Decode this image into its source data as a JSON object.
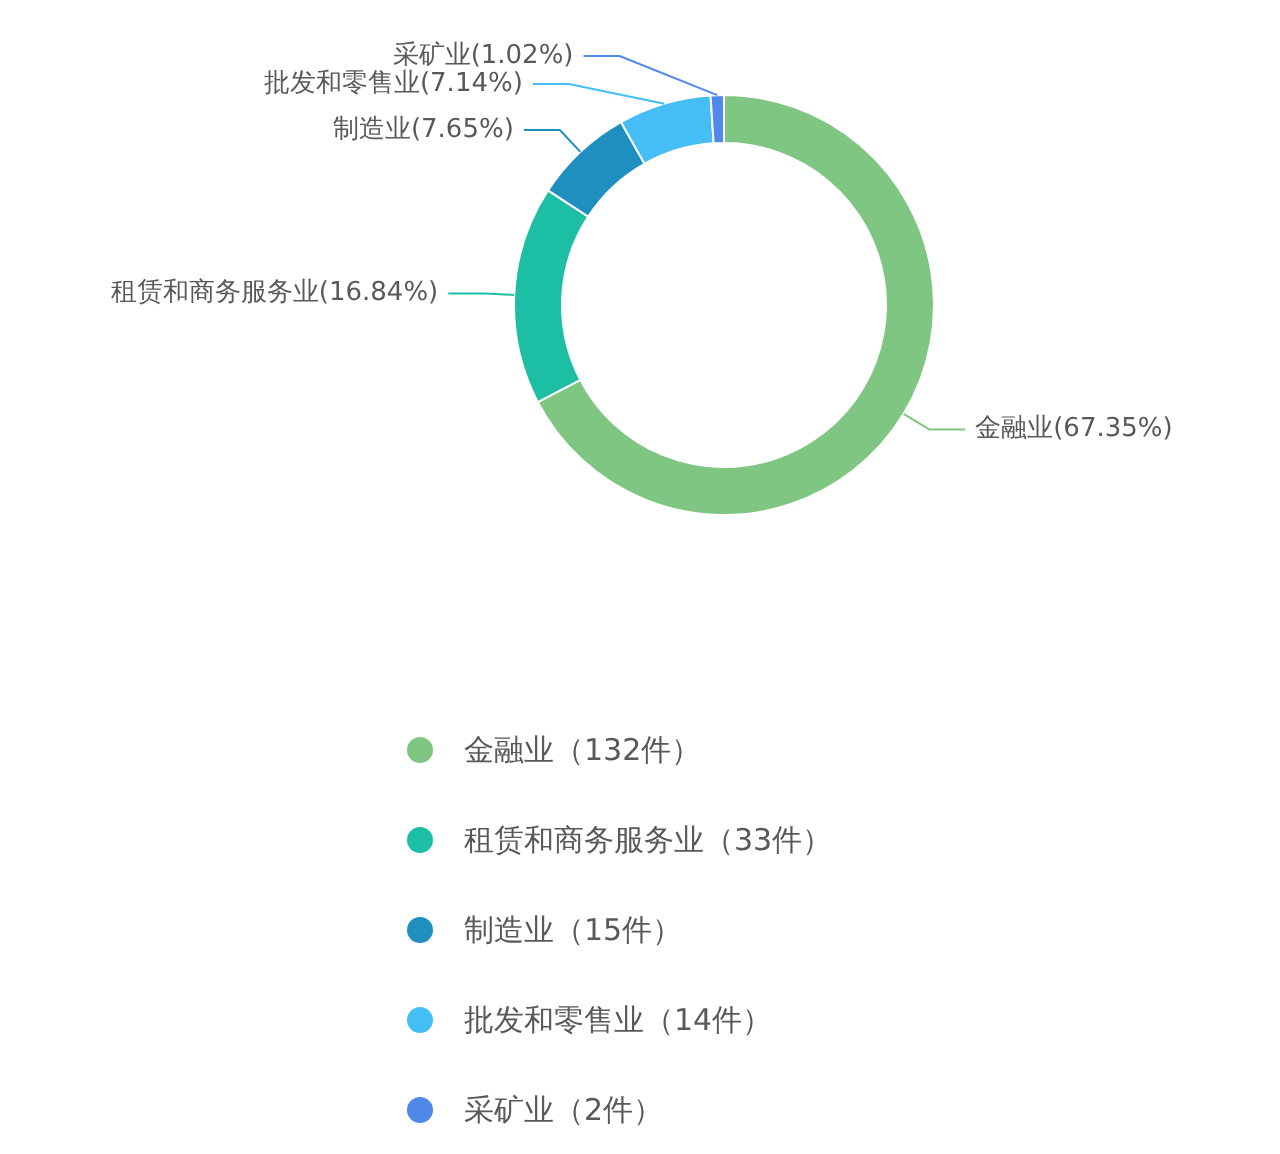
{
  "chart_data": {
    "type": "donut",
    "categories": [
      "金融业（132件）",
      "租赁和商务服务业（33件）",
      "制造业（15件）",
      "批发和零售业（14件）",
      "采矿业（2件）"
    ],
    "values": [
      132,
      33,
      15,
      14,
      2
    ],
    "colors": [
      "#7fc682",
      "#1dbfa4",
      "#1f8fc0",
      "#45bdf5",
      "#5189ea"
    ],
    "value_labels": [
      "金融业(67.35%)",
      "租赁和商务服务业(16.84%)",
      "制造业(7.65%)",
      "批发和零售业(7.14%)",
      "采矿业(1.02%)"
    ],
    "legend": "bottom"
  }
}
